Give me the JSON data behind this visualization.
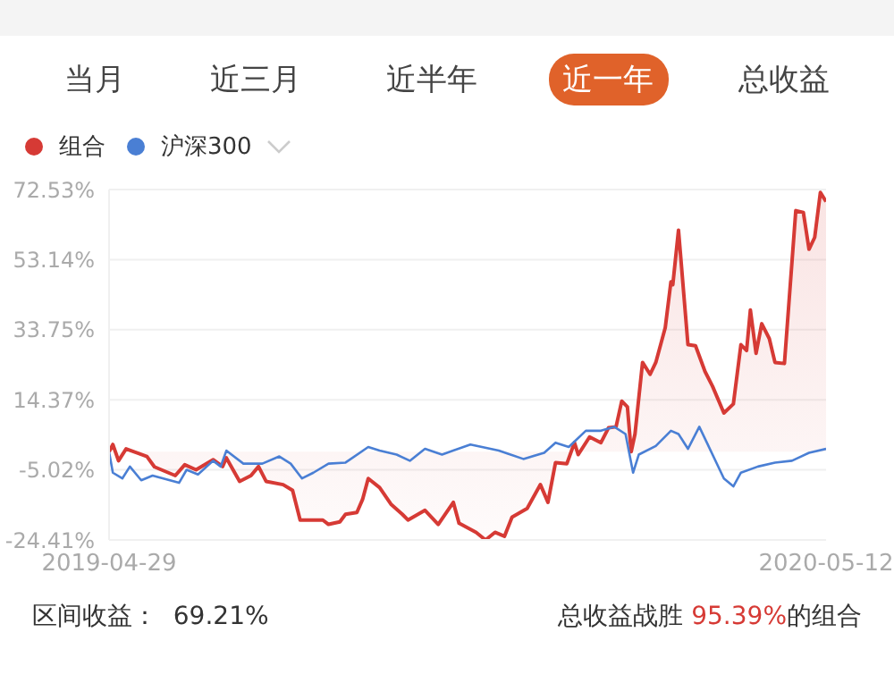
{
  "chart_data": {
    "type": "line",
    "annotations": [
      "当月",
      "近三月",
      "近半年",
      "近一年",
      "总收益",
      "区间收益：  69.21%",
      "总收益战胜 95.39%的组合"
    ],
    "xlim": [
      "2019-04-29",
      "2020-05-12"
    ],
    "xticks": [
      "2019-04-29",
      "2020-05-12"
    ],
    "ylim": [
      -24.41,
      72.53
    ],
    "yticks": [
      {
        "value": -24.41,
        "label": "-24.41%"
      },
      {
        "value": -5.02,
        "label": "-5.02%"
      },
      {
        "value": 14.37,
        "label": "14.37%"
      },
      {
        "value": 33.75,
        "label": "33.75%"
      },
      {
        "value": 53.14,
        "label": "53.14%"
      },
      {
        "value": 72.53,
        "label": "72.53%"
      }
    ],
    "grid": "y",
    "legend": "top left",
    "marker": "none",
    "line_style": "solid",
    "series": [
      {
        "name": "组合",
        "type": "area",
        "color": "#d63a35",
        "x": [
          "2019-04-29",
          "2019-05-01",
          "2019-05-04",
          "2019-05-08",
          "2019-05-19",
          "2019-05-23",
          "2019-06-03",
          "2019-06-08",
          "2019-06-14",
          "2019-06-23",
          "2019-06-28",
          "2019-06-30",
          "2019-07-07",
          "2019-07-13",
          "2019-07-17",
          "2019-07-21",
          "2019-07-30",
          "2019-08-04",
          "2019-08-08",
          "2019-08-20",
          "2019-08-23",
          "2019-08-29",
          "2019-09-01",
          "2019-09-07",
          "2019-09-10",
          "2019-09-13",
          "2019-09-19",
          "2019-09-25",
          "2019-10-01",
          "2019-10-04",
          "2019-10-13",
          "2019-10-20",
          "2019-10-28",
          "2019-10-31",
          "2019-11-09",
          "2019-11-14",
          "2019-11-19",
          "2019-11-24",
          "2019-11-28",
          "2019-12-06",
          "2019-12-13",
          "2019-12-17",
          "2019-12-21",
          "2019-12-27",
          "2019-12-31",
          "2020-01-02",
          "2020-01-08",
          "2020-01-14",
          "2020-01-18",
          "2020-01-22",
          "2020-01-25",
          "2020-01-28",
          "2020-01-30",
          "2020-02-01",
          "2020-02-05",
          "2020-02-09",
          "2020-02-12",
          "2020-02-17",
          "2020-02-20",
          "2020-02-21",
          "2020-02-24",
          "2020-02-29",
          "2020-03-04",
          "2020-03-09",
          "2020-03-13",
          "2020-03-19",
          "2020-03-24",
          "2020-03-28",
          "2020-03-31",
          "2020-04-02",
          "2020-04-05",
          "2020-04-08",
          "2020-04-12",
          "2020-04-15",
          "2020-04-20",
          "2020-04-26",
          "2020-04-30",
          "2020-05-03",
          "2020-05-06",
          "2020-05-09",
          "2020-05-12"
        ],
        "values": [
          0,
          2.0,
          -2.5,
          0.8,
          -1.3,
          -4.2,
          -6.6,
          -3.6,
          -5.0,
          -2.2,
          -4.1,
          -1.7,
          -8.2,
          -6.6,
          -4.1,
          -8.2,
          -9.1,
          -10.7,
          -18.9,
          -18.9,
          -20.1,
          -19.4,
          -17.3,
          -16.8,
          -13.2,
          -7.4,
          -9.9,
          -14.5,
          -17.3,
          -18.9,
          -16.2,
          -20.1,
          -14.0,
          -19.8,
          -22.3,
          -24.4,
          -22.3,
          -23.4,
          -18.1,
          -15.7,
          -9.1,
          -14.0,
          -3.0,
          -3.3,
          2.5,
          -0.8,
          4.1,
          2.5,
          6.6,
          6.9,
          14.0,
          12.4,
          0,
          4.9,
          24.7,
          21.4,
          24.7,
          34.3,
          47.0,
          46.2,
          61.3,
          29.6,
          29.3,
          22.2,
          18.1,
          10.7,
          13.2,
          29.6,
          28.0,
          39.2,
          27.2,
          35.4,
          31.3,
          24.7,
          24.4,
          66.7,
          66.2,
          56.0,
          59.3,
          71.7,
          69.2
        ]
      },
      {
        "name": "沪深300",
        "color": "#4a7fd4",
        "x": [
          "2019-04-29",
          "2019-05-01",
          "2019-05-06",
          "2019-05-10",
          "2019-05-16",
          "2019-05-22",
          "2019-06-05",
          "2019-06-09",
          "2019-06-15",
          "2019-06-23",
          "2019-06-27",
          "2019-06-30",
          "2019-07-09",
          "2019-07-19",
          "2019-07-28",
          "2019-08-03",
          "2019-08-09",
          "2019-08-15",
          "2019-08-23",
          "2019-09-01",
          "2019-09-13",
          "2019-09-19",
          "2019-09-28",
          "2019-10-05",
          "2019-10-13",
          "2019-10-22",
          "2019-11-06",
          "2019-11-21",
          "2019-12-04",
          "2019-12-15",
          "2019-12-21",
          "2019-12-28",
          "2020-01-06",
          "2020-01-14",
          "2020-01-21",
          "2020-01-27",
          "2020-01-31",
          "2020-02-03",
          "2020-02-12",
          "2020-02-20",
          "2020-02-24",
          "2020-02-29",
          "2020-03-06",
          "2020-03-10",
          "2020-03-19",
          "2020-03-24",
          "2020-03-28",
          "2020-04-06",
          "2020-04-15",
          "2020-04-24",
          "2020-05-03",
          "2020-05-12"
        ],
        "values": [
          0,
          -5.8,
          -7.4,
          -4.1,
          -7.9,
          -6.6,
          -8.6,
          -5.0,
          -6.3,
          -2.5,
          -4.1,
          0.3,
          -3.3,
          -3.3,
          -1.3,
          -3.3,
          -7.4,
          -5.8,
          -3.3,
          -3.0,
          1.3,
          0.3,
          -0.8,
          -2.5,
          0.8,
          -0.8,
          2.0,
          0.3,
          -2.0,
          -0.3,
          2.5,
          1.3,
          5.8,
          5.8,
          6.9,
          4.9,
          -5.8,
          -0.8,
          1.6,
          5.8,
          4.9,
          0.8,
          6.9,
          2.5,
          -7.4,
          -9.6,
          -5.8,
          -4.1,
          -3.0,
          -2.5,
          -0.3,
          0.8
        ]
      }
    ]
  }
}
